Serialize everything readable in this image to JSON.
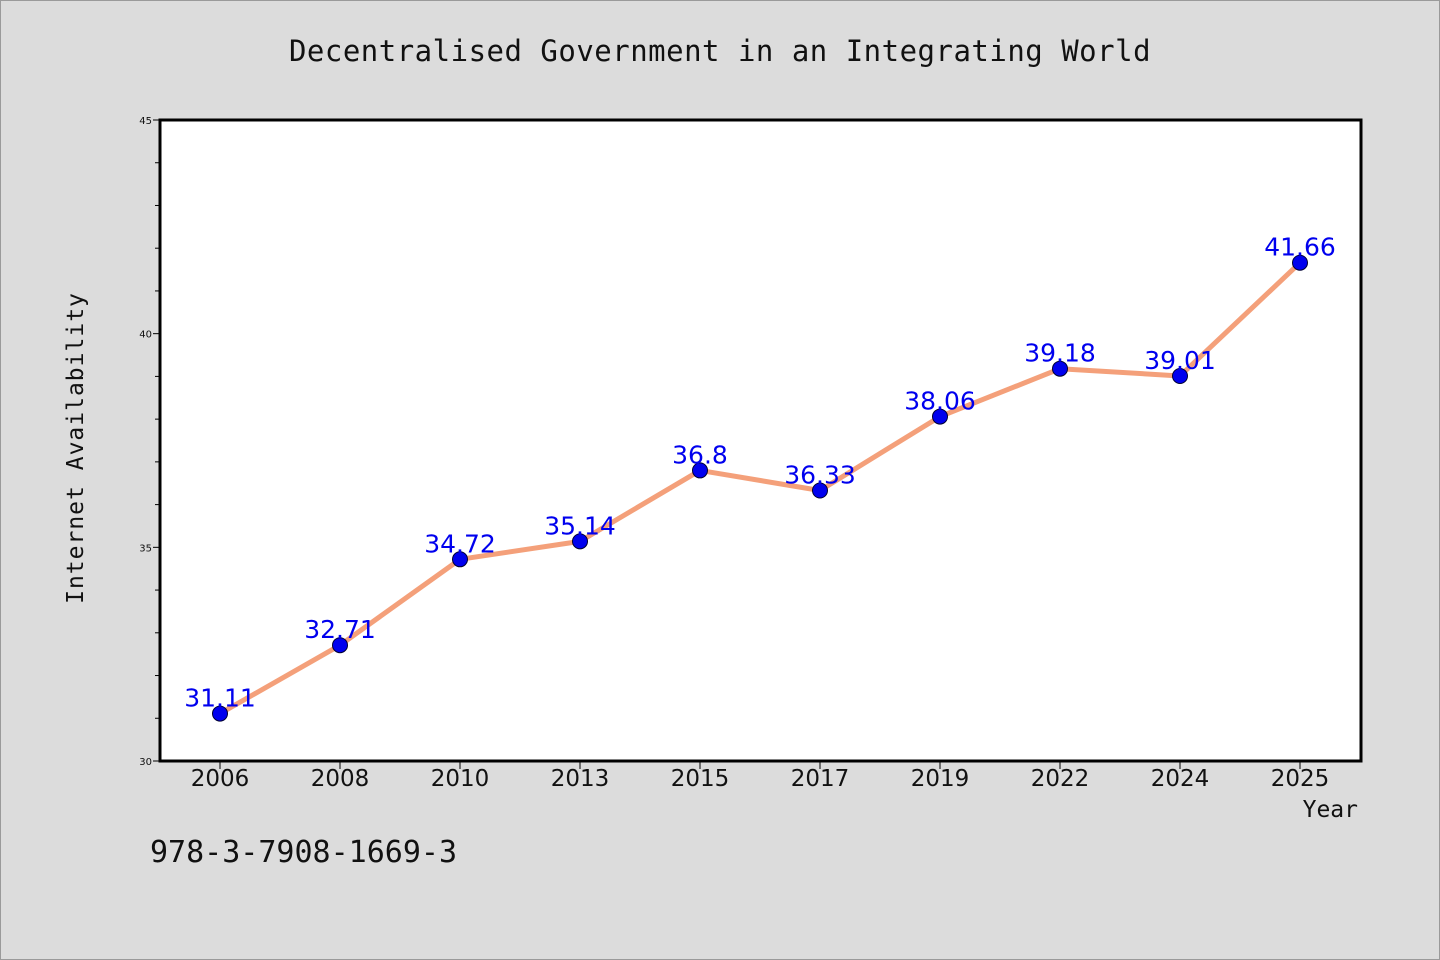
{
  "chart_data": {
    "type": "line",
    "title": "Decentralised Government in an Integrating World",
    "xlabel": "Year",
    "ylabel": "Internet Availability",
    "categories": [
      "2006",
      "2008",
      "2010",
      "2013",
      "2015",
      "2017",
      "2019",
      "2022",
      "2024",
      "2025"
    ],
    "series": [
      {
        "values": [
          31.11,
          32.71,
          34.72,
          35.14,
          36.8,
          36.33,
          38.06,
          39.18,
          39.01,
          41.66
        ]
      }
    ],
    "data_labels": [
      "31.11",
      "32.71",
      "34.72",
      "35.14",
      "36.8",
      "36.33",
      "38.06",
      "39.18",
      "39.01",
      "41.66"
    ],
    "ylim": [
      30,
      45
    ],
    "y_ticks": [
      "30",
      "35",
      "40",
      "45"
    ],
    "y_minor_step": 1,
    "grid": false,
    "legend": "none",
    "colors": {
      "line": "#f4a07a",
      "marker_fill": "#0000ee",
      "marker_edge": "#000033",
      "data_label": "#0000ee",
      "background": "#dcdcdc",
      "plot_background": "#ffffff"
    }
  },
  "footer": {
    "isbn": "978-3-7908-1669-3"
  }
}
